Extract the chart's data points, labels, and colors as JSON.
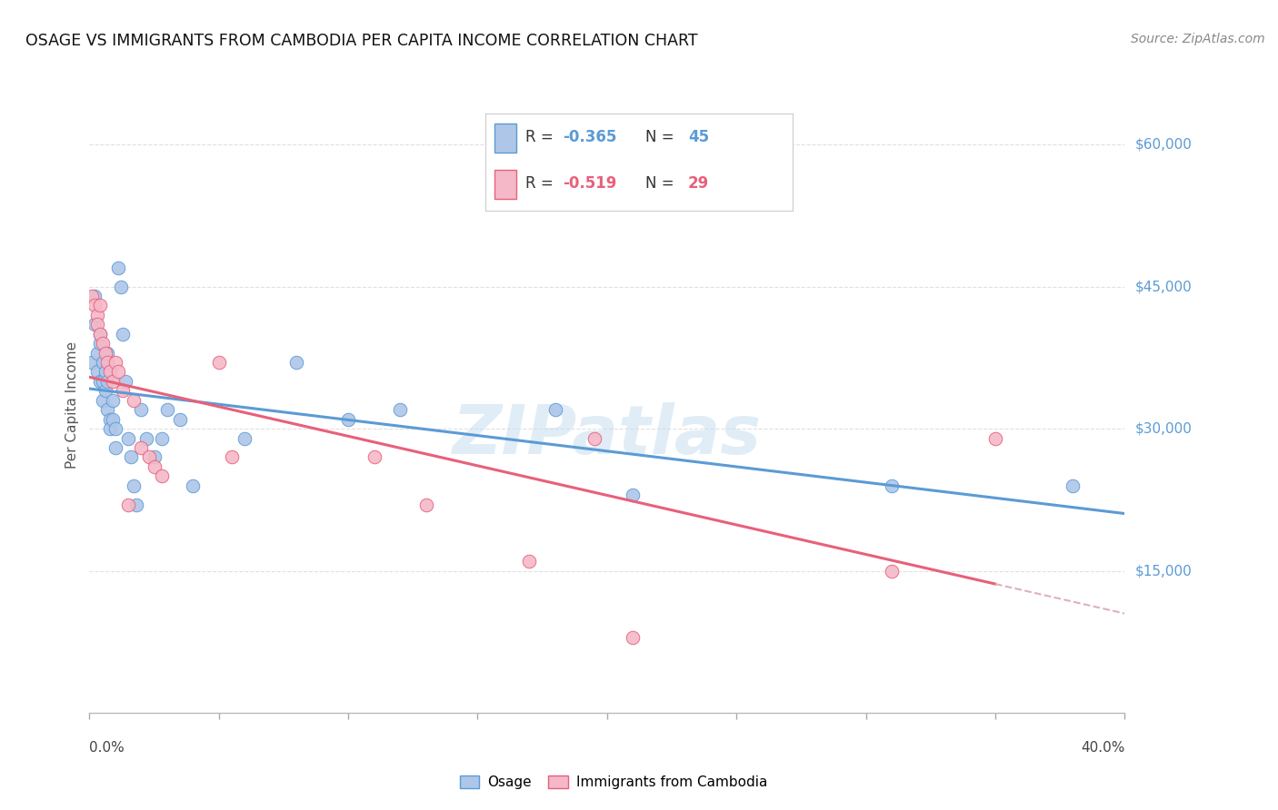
{
  "title": "OSAGE VS IMMIGRANTS FROM CAMBODIA PER CAPITA INCOME CORRELATION CHART",
  "source": "Source: ZipAtlas.com",
  "ylabel": "Per Capita Income",
  "x_min": 0.0,
  "x_max": 0.4,
  "y_min": 0,
  "y_max": 65000,
  "osage_R": -0.365,
  "osage_N": 45,
  "cambodia_R": -0.519,
  "cambodia_N": 29,
  "osage_color": "#aec6e8",
  "cambodia_color": "#f4b8c8",
  "osage_line_color": "#5b9bd5",
  "cambodia_line_color": "#e8607a",
  "cambodia_dashed_color": "#e0b0bc",
  "watermark": "ZIPatlas",
  "background_color": "#ffffff",
  "grid_color": "#e0e0e0",
  "y_ticks": [
    0,
    15000,
    30000,
    45000,
    60000
  ],
  "y_tick_labels": [
    "",
    "$15,000",
    "$30,000",
    "$45,000",
    "$60,000"
  ],
  "osage_x": [
    0.001,
    0.002,
    0.002,
    0.003,
    0.003,
    0.004,
    0.004,
    0.004,
    0.005,
    0.005,
    0.005,
    0.006,
    0.006,
    0.007,
    0.007,
    0.007,
    0.008,
    0.008,
    0.009,
    0.009,
    0.01,
    0.01,
    0.011,
    0.012,
    0.013,
    0.014,
    0.015,
    0.016,
    0.017,
    0.018,
    0.02,
    0.022,
    0.025,
    0.028,
    0.03,
    0.035,
    0.04,
    0.06,
    0.08,
    0.1,
    0.12,
    0.18,
    0.21,
    0.31,
    0.38
  ],
  "osage_y": [
    37000,
    44000,
    41000,
    36000,
    38000,
    39000,
    35000,
    40000,
    37000,
    35000,
    33000,
    36000,
    34000,
    38000,
    35000,
    32000,
    31000,
    30000,
    33000,
    31000,
    28000,
    30000,
    47000,
    45000,
    40000,
    35000,
    29000,
    27000,
    24000,
    22000,
    32000,
    29000,
    27000,
    29000,
    32000,
    31000,
    24000,
    29000,
    37000,
    31000,
    32000,
    32000,
    23000,
    24000,
    24000
  ],
  "cambodia_x": [
    0.001,
    0.002,
    0.003,
    0.003,
    0.004,
    0.004,
    0.005,
    0.006,
    0.007,
    0.008,
    0.009,
    0.01,
    0.011,
    0.013,
    0.015,
    0.017,
    0.02,
    0.023,
    0.025,
    0.028,
    0.05,
    0.055,
    0.11,
    0.13,
    0.17,
    0.195,
    0.21,
    0.31,
    0.35
  ],
  "cambodia_y": [
    44000,
    43000,
    42000,
    41000,
    40000,
    43000,
    39000,
    38000,
    37000,
    36000,
    35000,
    37000,
    36000,
    34000,
    22000,
    33000,
    28000,
    27000,
    26000,
    25000,
    37000,
    27000,
    27000,
    22000,
    16000,
    29000,
    8000,
    15000,
    29000
  ]
}
